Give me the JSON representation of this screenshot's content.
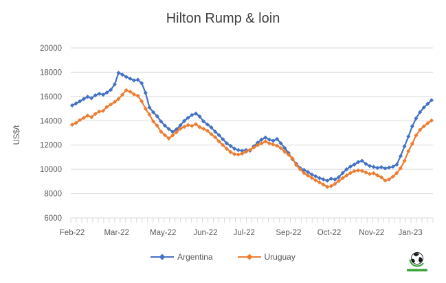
{
  "title": "Hilton Rump & loin",
  "colors": {
    "argentina_blue": "#4472C4",
    "uruguay_orange": "#ED7D31",
    "gridline": "#D9D9D9",
    "axis_text": "#595959",
    "title_text": "#3F3F3F",
    "logo_green": "#3BA43B"
  },
  "chart_data": {
    "type": "line",
    "title": "Hilton Rump & loin",
    "xlabel": "",
    "ylabel": "US$/t",
    "ylim": [
      6000,
      20000
    ],
    "yticks": [
      6000,
      8000,
      10000,
      12000,
      14000,
      16000,
      18000,
      20000
    ],
    "grid": true,
    "legend_position": "bottom",
    "x_tick_labels": [
      "Feb-22",
      "Mar-22",
      "May-22",
      "Jun-22",
      "Jul-22",
      "Sep-22",
      "Oct-22",
      "Nov-22",
      "Jan-23"
    ],
    "x_tick_positions": [
      0,
      11.5,
      23.5,
      34.5,
      44.5,
      56,
      66.5,
      77.5,
      87.5
    ],
    "x_unit": "weekly price observations, Feb-2022 to Feb-2023",
    "series": [
      {
        "name": "Argentina",
        "color": "#4472C4",
        "values": [
          15270,
          15430,
          15610,
          15800,
          15980,
          15860,
          16100,
          16230,
          16150,
          16330,
          16550,
          17000,
          17950,
          17800,
          17620,
          17470,
          17330,
          17380,
          17100,
          16300,
          15100,
          14700,
          14380,
          13950,
          13600,
          13330,
          13090,
          13300,
          13620,
          13990,
          14250,
          14480,
          14600,
          14350,
          13950,
          13700,
          13450,
          13100,
          12820,
          12480,
          12150,
          11930,
          11700,
          11590,
          11530,
          11590,
          11540,
          11900,
          12200,
          12450,
          12620,
          12450,
          12350,
          12500,
          12150,
          11750,
          11350,
          10850,
          10450,
          10100,
          9950,
          9780,
          9580,
          9430,
          9280,
          9170,
          9070,
          9230,
          9160,
          9360,
          9700,
          10000,
          10230,
          10400,
          10600,
          10700,
          10450,
          10280,
          10200,
          10120,
          10180,
          10080,
          10150,
          10220,
          10400,
          11100,
          11900,
          12700,
          13550,
          14200,
          14700,
          15100,
          15400,
          15700
        ]
      },
      {
        "name": "Uruguay",
        "color": "#ED7D31",
        "values": [
          13680,
          13820,
          14060,
          14240,
          14430,
          14300,
          14570,
          14760,
          14820,
          15150,
          15350,
          15560,
          15800,
          16150,
          16520,
          16400,
          16180,
          16060,
          15600,
          15000,
          14500,
          13950,
          13600,
          13100,
          12820,
          12550,
          12800,
          13060,
          13350,
          13500,
          13650,
          13580,
          13720,
          13480,
          13340,
          13180,
          12900,
          12650,
          12300,
          12000,
          11700,
          11420,
          11250,
          11220,
          11300,
          11450,
          11600,
          11800,
          12000,
          12150,
          12300,
          12150,
          12050,
          11950,
          11750,
          11450,
          11200,
          10900,
          10350,
          10000,
          9700,
          9500,
          9300,
          9100,
          8930,
          8750,
          8560,
          8620,
          8800,
          9050,
          9280,
          9500,
          9700,
          9850,
          9920,
          9870,
          9750,
          9620,
          9680,
          9500,
          9350,
          9080,
          9180,
          9400,
          9700,
          10100,
          10700,
          11500,
          12100,
          12800,
          13250,
          13550,
          13800,
          14020
        ]
      }
    ]
  }
}
